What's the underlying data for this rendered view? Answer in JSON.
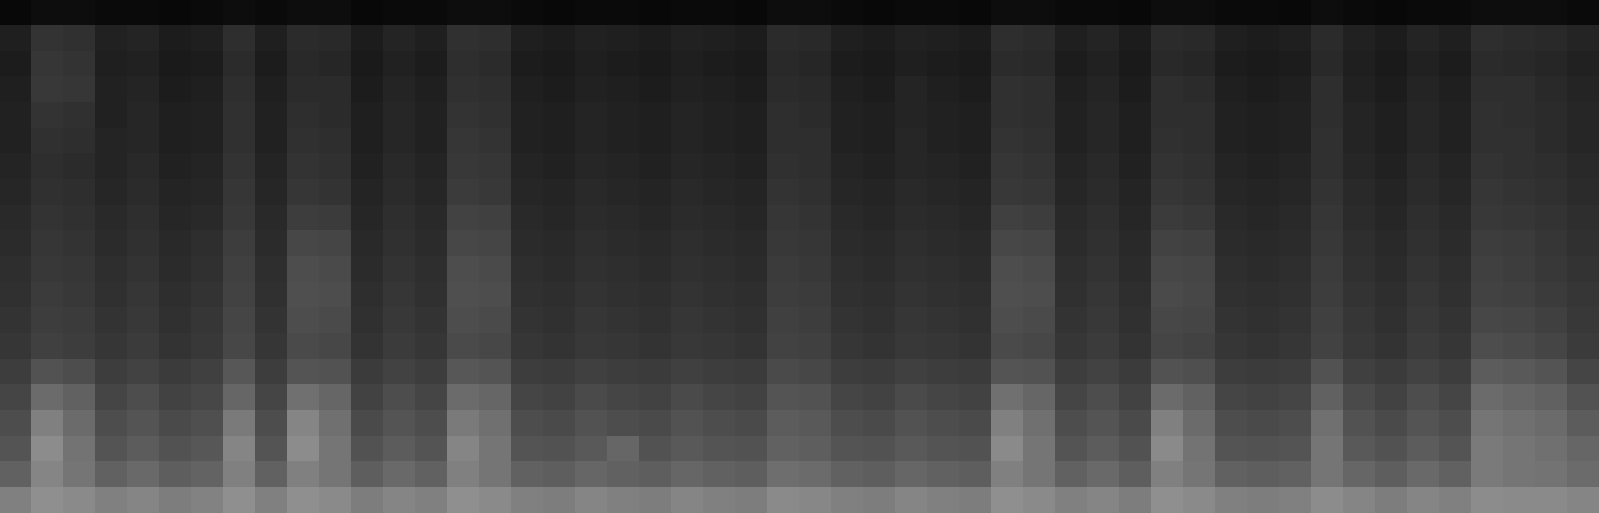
{
  "chart_data": {
    "type": "heatmap",
    "tick_labels": false,
    "zlim": [
      0,
      100
    ],
    "cells": [
      [
        3,
        5,
        5,
        4,
        4,
        3,
        4,
        5,
        4,
        5,
        5,
        3,
        4,
        4,
        5,
        5,
        4,
        3,
        4,
        4,
        3,
        4,
        4,
        3,
        5,
        5,
        4,
        3,
        4,
        4,
        3,
        5,
        5,
        4,
        4,
        3,
        5,
        5,
        4,
        4,
        3,
        5,
        4,
        3,
        4,
        4,
        5,
        5,
        5,
        4
      ],
      [
        12,
        20,
        19,
        13,
        14,
        11,
        12,
        18,
        12,
        17,
        16,
        11,
        14,
        12,
        19,
        18,
        12,
        11,
        13,
        12,
        11,
        13,
        12,
        11,
        17,
        16,
        12,
        11,
        13,
        12,
        11,
        18,
        17,
        12,
        14,
        11,
        17,
        16,
        12,
        11,
        12,
        17,
        13,
        11,
        14,
        12,
        18,
        17,
        16,
        14
      ],
      [
        11,
        21,
        20,
        12,
        13,
        10,
        11,
        17,
        11,
        16,
        15,
        10,
        13,
        11,
        18,
        17,
        11,
        10,
        12,
        11,
        10,
        12,
        11,
        10,
        16,
        15,
        11,
        10,
        12,
        11,
        10,
        17,
        16,
        11,
        13,
        10,
        16,
        15,
        11,
        10,
        11,
        16,
        12,
        10,
        13,
        11,
        17,
        16,
        15,
        13
      ],
      [
        12,
        22,
        21,
        13,
        14,
        11,
        12,
        18,
        12,
        17,
        17,
        11,
        14,
        12,
        19,
        18,
        12,
        11,
        13,
        12,
        11,
        13,
        12,
        11,
        17,
        16,
        12,
        11,
        14,
        12,
        11,
        19,
        18,
        12,
        14,
        11,
        18,
        17,
        12,
        11,
        12,
        18,
        13,
        11,
        14,
        12,
        18,
        18,
        16,
        14
      ],
      [
        13,
        20,
        19,
        13,
        15,
        12,
        13,
        19,
        13,
        18,
        17,
        12,
        15,
        13,
        20,
        19,
        13,
        12,
        14,
        13,
        12,
        14,
        13,
        12,
        18,
        17,
        13,
        12,
        14,
        13,
        12,
        19,
        18,
        13,
        15,
        12,
        18,
        18,
        13,
        12,
        13,
        18,
        14,
        12,
        15,
        13,
        19,
        18,
        17,
        15
      ],
      [
        13,
        19,
        18,
        14,
        15,
        12,
        13,
        19,
        13,
        19,
        18,
        12,
        15,
        13,
        21,
        20,
        13,
        12,
        14,
        13,
        12,
        14,
        13,
        12,
        18,
        18,
        13,
        12,
        15,
        13,
        12,
        20,
        19,
        13,
        15,
        12,
        19,
        18,
        13,
        12,
        13,
        19,
        14,
        12,
        15,
        13,
        19,
        19,
        17,
        15
      ],
      [
        14,
        18,
        17,
        14,
        16,
        13,
        14,
        20,
        14,
        20,
        19,
        13,
        16,
        14,
        22,
        21,
        14,
        13,
        15,
        14,
        13,
        15,
        14,
        13,
        19,
        18,
        14,
        13,
        15,
        14,
        13,
        21,
        20,
        14,
        16,
        13,
        20,
        19,
        14,
        13,
        14,
        19,
        15,
        13,
        16,
        14,
        20,
        19,
        18,
        16
      ],
      [
        15,
        19,
        18,
        15,
        17,
        14,
        15,
        21,
        15,
        21,
        20,
        14,
        17,
        15,
        23,
        22,
        15,
        14,
        16,
        15,
        14,
        16,
        15,
        14,
        20,
        19,
        15,
        14,
        16,
        15,
        14,
        22,
        21,
        15,
        17,
        14,
        21,
        20,
        15,
        14,
        15,
        20,
        16,
        14,
        17,
        15,
        21,
        20,
        19,
        17
      ],
      [
        16,
        20,
        19,
        16,
        18,
        15,
        16,
        22,
        16,
        24,
        23,
        15,
        18,
        16,
        26,
        25,
        16,
        15,
        17,
        16,
        15,
        17,
        16,
        15,
        21,
        20,
        16,
        15,
        17,
        16,
        15,
        25,
        24,
        16,
        18,
        15,
        23,
        22,
        16,
        15,
        16,
        21,
        17,
        15,
        18,
        16,
        22,
        21,
        20,
        18
      ],
      [
        17,
        21,
        20,
        17,
        19,
        16,
        18,
        24,
        17,
        28,
        27,
        16,
        19,
        17,
        28,
        27,
        17,
        16,
        18,
        17,
        16,
        18,
        17,
        16,
        22,
        21,
        17,
        16,
        18,
        17,
        16,
        28,
        27,
        17,
        19,
        16,
        26,
        25,
        17,
        16,
        17,
        22,
        18,
        16,
        19,
        17,
        24,
        23,
        21,
        19
      ],
      [
        18,
        22,
        21,
        18,
        20,
        17,
        19,
        25,
        18,
        30,
        29,
        17,
        20,
        18,
        30,
        29,
        18,
        17,
        19,
        18,
        17,
        19,
        18,
        17,
        23,
        22,
        18,
        17,
        19,
        18,
        17,
        30,
        29,
        18,
        20,
        17,
        28,
        27,
        18,
        17,
        18,
        23,
        19,
        17,
        20,
        18,
        25,
        24,
        22,
        20
      ],
      [
        19,
        23,
        22,
        19,
        21,
        18,
        20,
        26,
        19,
        31,
        30,
        18,
        21,
        19,
        31,
        30,
        19,
        18,
        20,
        19,
        18,
        20,
        19,
        18,
        24,
        23,
        19,
        18,
        20,
        19,
        18,
        31,
        30,
        19,
        21,
        18,
        29,
        28,
        19,
        18,
        19,
        24,
        20,
        18,
        21,
        19,
        26,
        25,
        23,
        21
      ],
      [
        20,
        24,
        23,
        20,
        22,
        19,
        21,
        27,
        20,
        30,
        29,
        19,
        22,
        20,
        30,
        29,
        20,
        19,
        21,
        20,
        19,
        21,
        20,
        19,
        25,
        24,
        20,
        19,
        21,
        20,
        19,
        30,
        29,
        20,
        22,
        19,
        28,
        27,
        20,
        19,
        20,
        25,
        21,
        19,
        22,
        20,
        28,
        27,
        25,
        22
      ],
      [
        21,
        25,
        24,
        21,
        23,
        20,
        22,
        28,
        21,
        29,
        28,
        20,
        23,
        21,
        29,
        28,
        21,
        20,
        22,
        21,
        20,
        22,
        21,
        20,
        26,
        25,
        21,
        20,
        22,
        21,
        20,
        29,
        28,
        21,
        23,
        20,
        27,
        26,
        21,
        20,
        21,
        26,
        22,
        20,
        23,
        21,
        30,
        29,
        27,
        23
      ],
      [
        24,
        32,
        30,
        24,
        26,
        23,
        25,
        34,
        24,
        33,
        32,
        23,
        26,
        24,
        34,
        33,
        24,
        23,
        25,
        24,
        23,
        25,
        24,
        23,
        29,
        28,
        24,
        23,
        25,
        24,
        23,
        33,
        32,
        24,
        26,
        23,
        32,
        31,
        24,
        23,
        24,
        32,
        25,
        23,
        26,
        24,
        36,
        35,
        33,
        27
      ],
      [
        27,
        42,
        38,
        27,
        30,
        26,
        28,
        40,
        27,
        44,
        40,
        26,
        30,
        27,
        42,
        40,
        27,
        26,
        29,
        27,
        26,
        29,
        27,
        26,
        33,
        32,
        27,
        26,
        29,
        27,
        26,
        44,
        40,
        27,
        30,
        26,
        42,
        38,
        27,
        26,
        27,
        38,
        29,
        26,
        30,
        27,
        42,
        40,
        38,
        32
      ],
      [
        30,
        50,
        42,
        30,
        33,
        29,
        31,
        48,
        30,
        52,
        44,
        29,
        33,
        30,
        48,
        44,
        30,
        29,
        32,
        30,
        29,
        32,
        30,
        29,
        36,
        35,
        30,
        29,
        32,
        30,
        29,
        50,
        44,
        30,
        33,
        29,
        50,
        42,
        30,
        29,
        30,
        44,
        32,
        29,
        33,
        30,
        46,
        44,
        42,
        36
      ],
      [
        33,
        55,
        45,
        33,
        36,
        32,
        34,
        52,
        33,
        55,
        46,
        32,
        36,
        33,
        52,
        46,
        33,
        32,
        35,
        40,
        32,
        35,
        33,
        32,
        38,
        37,
        33,
        32,
        35,
        33,
        32,
        54,
        46,
        33,
        36,
        32,
        54,
        45,
        33,
        32,
        33,
        46,
        35,
        32,
        36,
        33,
        48,
        46,
        44,
        40
      ],
      [
        38,
        52,
        46,
        38,
        41,
        37,
        39,
        50,
        38,
        50,
        46,
        37,
        41,
        38,
        50,
        46,
        38,
        37,
        40,
        38,
        37,
        40,
        38,
        37,
        43,
        42,
        38,
        37,
        40,
        38,
        37,
        50,
        46,
        38,
        41,
        37,
        50,
        46,
        38,
        37,
        38,
        46,
        40,
        37,
        41,
        38,
        48,
        46,
        45,
        42
      ],
      [
        50,
        56,
        54,
        50,
        52,
        49,
        51,
        56,
        50,
        56,
        54,
        49,
        52,
        50,
        56,
        54,
        50,
        49,
        52,
        50,
        49,
        52,
        50,
        49,
        54,
        53,
        50,
        49,
        52,
        50,
        49,
        56,
        54,
        50,
        52,
        49,
        56,
        54,
        50,
        49,
        50,
        55,
        52,
        49,
        52,
        50,
        55,
        54,
        54,
        52
      ]
    ]
  }
}
